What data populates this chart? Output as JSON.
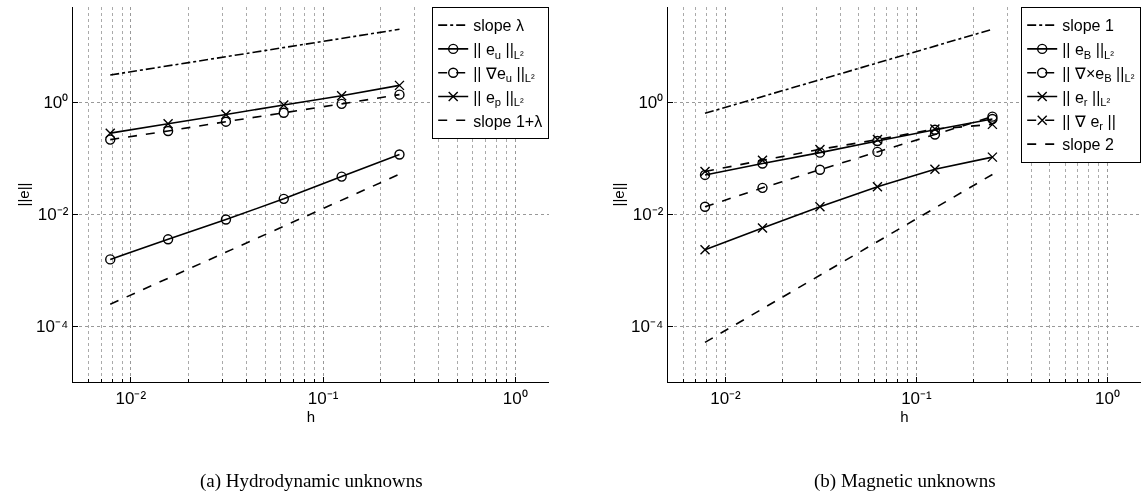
{
  "chart_data": [
    {
      "type": "line",
      "xlabel": "h",
      "ylabel": "||e||",
      "log": "xy",
      "grid": true,
      "legend": "top right",
      "xlim": [
        0.005,
        1.5
      ],
      "ylim": [
        1e-05,
        50
      ],
      "xticks": [
        {
          "value": 0.01,
          "label": "10⁻²"
        },
        {
          "value": 0.1,
          "label": "10⁻¹"
        },
        {
          "value": 1,
          "label": "10⁰"
        }
      ],
      "yticks": [
        {
          "value": 0.0001,
          "label": "10⁻⁴"
        },
        {
          "value": 0.01,
          "label": "10⁻²"
        },
        {
          "value": 1,
          "label": "10⁰"
        }
      ],
      "annotations": [
        "(a) Hydrodynamic unknowns"
      ],
      "series": [
        {
          "name": "slope λ",
          "color": "#000000",
          "line_style": "dashdot",
          "marker": "none",
          "x": [
            0.0078125,
            0.25
          ],
          "values": [
            3.05,
            20
          ]
        },
        {
          "name": "|| e$_{u}$ ||$_{L²}$",
          "color": "#000000",
          "line_style": "solid",
          "marker": "circle",
          "x": [
            0.0078125,
            0.015625,
            0.03125,
            0.0625,
            0.125,
            0.25
          ],
          "values": [
            0.00155,
            0.00354,
            0.008,
            0.0187,
            0.0467,
            0.116
          ]
        },
        {
          "name": "|| ∇e$_{u}$ ||$_{L²}$",
          "color": "#000000",
          "line_style": "dashed",
          "marker": "circle",
          "x": [
            0.0078125,
            0.015625,
            0.03125,
            0.0625,
            0.125,
            0.25
          ],
          "values": [
            0.214,
            0.305,
            0.447,
            0.644,
            0.93,
            1.36
          ]
        },
        {
          "name": "|| e$_{p}$ ||$_{L²}$",
          "color": "#000000",
          "line_style": "solid",
          "marker": "cross",
          "x": [
            0.0078125,
            0.015625,
            0.03125,
            0.0625,
            0.125,
            0.25
          ],
          "values": [
            0.279,
            0.41,
            0.6,
            0.89,
            1.3,
            1.99
          ]
        },
        {
          "name": "slope 1+λ",
          "color": "#000000",
          "line_style": "dashed",
          "marker": "none",
          "x": [
            0.0078125,
            0.25
          ],
          "values": [
            0.000245,
            0.0516
          ]
        }
      ]
    },
    {
      "type": "line",
      "xlabel": "h",
      "ylabel": "||e||",
      "log": "xy",
      "grid": true,
      "legend": "top right",
      "xlim": [
        0.005,
        1.5
      ],
      "ylim": [
        1e-05,
        50
      ],
      "xticks": [
        {
          "value": 0.01,
          "label": "10⁻²"
        },
        {
          "value": 0.1,
          "label": "10⁻¹"
        },
        {
          "value": 1,
          "label": "10⁰"
        }
      ],
      "yticks": [
        {
          "value": 0.0001,
          "label": "10⁻⁴"
        },
        {
          "value": 0.01,
          "label": "10⁻²"
        },
        {
          "value": 1,
          "label": "10⁰"
        }
      ],
      "annotations": [
        "(b) Magnetic unknowns"
      ],
      "series": [
        {
          "name": "slope 1",
          "color": "#000000",
          "line_style": "dashdot",
          "marker": "none",
          "x": [
            0.0078125,
            0.25
          ],
          "values": [
            0.63,
            20
          ]
        },
        {
          "name": "|| e$_{B}$ ||$_{L²}$",
          "color": "#000000",
          "line_style": "solid",
          "marker": "circle",
          "x": [
            0.0078125,
            0.015625,
            0.03125,
            0.0625,
            0.125,
            0.25
          ],
          "values": [
            0.05,
            0.08,
            0.125,
            0.202,
            0.32,
            0.5
          ]
        },
        {
          "name": "|| ∇×e$_{B}$ ||$_{L²}$",
          "color": "#000000",
          "line_style": "dashed",
          "marker": "circle",
          "x": [
            0.0078125,
            0.015625,
            0.03125,
            0.0625,
            0.125,
            0.25
          ],
          "values": [
            0.0135,
            0.0294,
            0.062,
            0.129,
            0.264,
            0.55
          ]
        },
        {
          "name": "|| e$_{r}$ ||$_{L²}$",
          "color": "#000000",
          "line_style": "solid",
          "marker": "cross",
          "x": [
            0.0078125,
            0.015625,
            0.03125,
            0.0625,
            0.125,
            0.25
          ],
          "values": [
            0.00231,
            0.00566,
            0.0135,
            0.0307,
            0.063,
            0.104
          ]
        },
        {
          "name": "|| ∇ e$_{r}$ ||",
          "color": "#000000",
          "line_style": "dashed",
          "marker": "cross",
          "x": [
            0.0078125,
            0.015625,
            0.03125,
            0.0625,
            0.125,
            0.25
          ],
          "values": [
            0.0575,
            0.0914,
            0.143,
            0.214,
            0.33,
            0.4
          ]
        },
        {
          "name": "slope 2",
          "color": "#000000",
          "line_style": "dashed",
          "marker": "none",
          "x": [
            0.0078125,
            0.25
          ],
          "values": [
            5.1e-05,
            0.051
          ]
        }
      ]
    }
  ]
}
